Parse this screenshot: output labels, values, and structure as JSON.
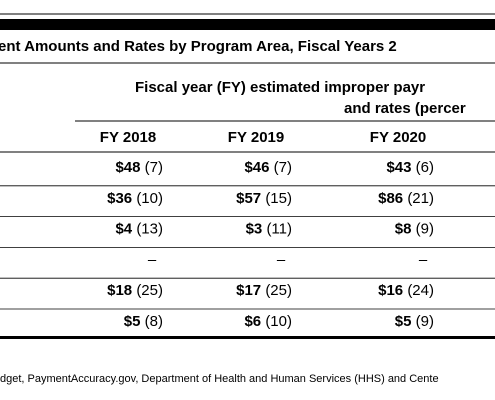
{
  "title": "ent Amounts and Rates by Program Area, Fiscal Years 2",
  "table": {
    "group_header": [
      "Fiscal year (FY) estimated improper payr",
      "and rates (percer"
    ],
    "columns": [
      "FY 2018",
      "FY 2019",
      "FY 2020"
    ],
    "rows": [
      [
        {
          "amount": "$48",
          "rate": "(7)"
        },
        {
          "amount": "$46",
          "rate": "(7)"
        },
        {
          "amount": "$43",
          "rate": "(6)"
        }
      ],
      [
        {
          "amount": "$36",
          "rate": "(10)"
        },
        {
          "amount": "$57",
          "rate": "(15)"
        },
        {
          "amount": "$86",
          "rate": "(21)"
        }
      ],
      [
        {
          "amount": "$4",
          "rate": "(13)"
        },
        {
          "amount": "$3",
          "rate": "(11)"
        },
        {
          "amount": "$8",
          "rate": "(9)"
        }
      ],
      [
        "–",
        "–",
        "–"
      ],
      [
        {
          "amount": "$18",
          "rate": "(25)"
        },
        {
          "amount": "$17",
          "rate": "(25)"
        },
        {
          "amount": "$16",
          "rate": "(24)"
        }
      ],
      [
        {
          "amount": "$5",
          "rate": "(8)"
        },
        {
          "amount": "$6",
          "rate": "(10)"
        },
        {
          "amount": "$5",
          "rate": "(9)"
        }
      ]
    ]
  },
  "source": "dget, PaymentAccuracy.gov, Department of Health and Human Services (HHS) and Cente"
}
